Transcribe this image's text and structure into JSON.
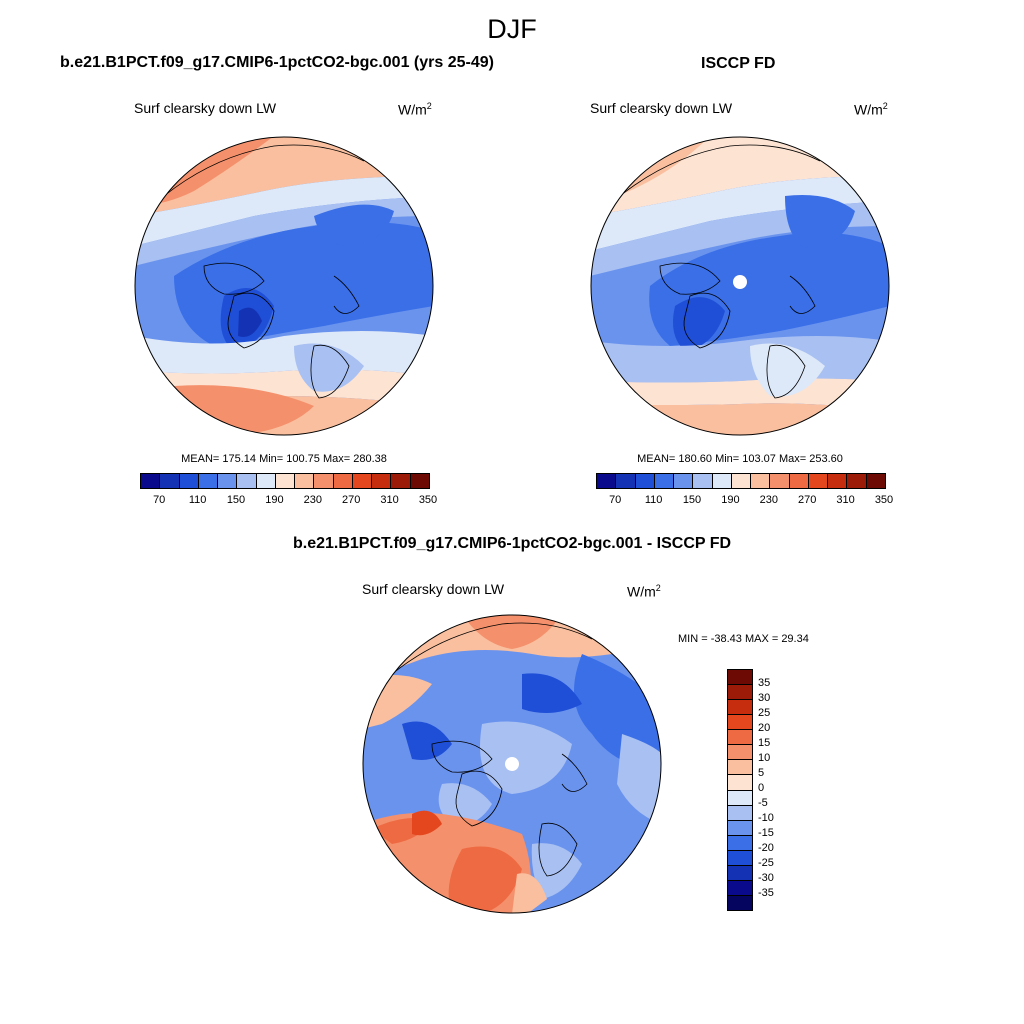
{
  "season": "DJF",
  "panels": [
    {
      "title": "b.e21.B1PCT.f09_g17.CMIP6-1pctCO2-bgc.001 (yrs 25-49)",
      "variable": "Surf clearsky down LW",
      "units": "W/m",
      "units_sup": "2",
      "stats": "MEAN= 175.14  Min= 100.75  Max= 280.38"
    },
    {
      "title": "ISCCP FD",
      "variable": "Surf clearsky down LW",
      "units": "W/m",
      "units_sup": "2",
      "stats": "MEAN= 180.60  Min= 103.07  Max= 253.60"
    },
    {
      "title": "b.e21.B1PCT.f09_g17.CMIP6-1pctCO2-bgc.001 - ISCCP FD",
      "variable": "Surf clearsky down LW",
      "units": "W/m",
      "units_sup": "2",
      "stats": "MIN = -38.43 MAX =  29.34"
    }
  ],
  "colorbar_abs": {
    "ticks": [
      "70",
      "110",
      "150",
      "190",
      "230",
      "270",
      "310",
      "350"
    ],
    "colors": [
      "#0a0a8c",
      "#1433b4",
      "#1f4fd6",
      "#3a6fe8",
      "#6a93ee",
      "#a8c0f2",
      "#dde8f8",
      "#fde3d2",
      "#f9bf9f",
      "#f4906b",
      "#ee6a43",
      "#e4461e",
      "#c62d0e",
      "#9c1a08",
      "#6e0a04"
    ]
  },
  "colorbar_diff": {
    "ticks": [
      "35",
      "30",
      "25",
      "20",
      "15",
      "10",
      "5",
      "0",
      "-5",
      "-10",
      "-15",
      "-20",
      "-25",
      "-30",
      "-35"
    ],
    "colors": [
      "#6e0a04",
      "#9c1a08",
      "#c62d0e",
      "#e4461e",
      "#ee6a43",
      "#f4906b",
      "#f9bf9f",
      "#fde3d2",
      "#dde8f8",
      "#a8c0f2",
      "#6a93ee",
      "#3a6fe8",
      "#1f4fd6",
      "#1433b4",
      "#0a0a8c",
      "#050560"
    ]
  },
  "map_colors": {
    "deep_blue": "#3a6fe8",
    "mid_blue": "#5a86ec",
    "light_blue": "#a8c0f2",
    "pale_blue": "#dde8f8",
    "pale_red": "#fde3d2",
    "light_red": "#f9bf9f",
    "mid_red": "#f4906b",
    "red": "#ee6a43",
    "dark_blue": "#1f4fd6"
  }
}
